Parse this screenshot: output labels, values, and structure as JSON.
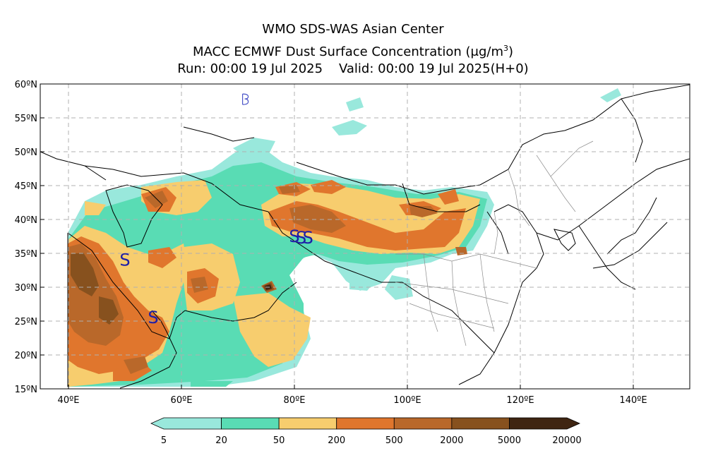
{
  "title": {
    "line1": "WMO SDS-WAS Asian Center",
    "line2_text": "MACC ECMWF Dust Surface Concentration",
    "line2_unit": "(μg/m",
    "line2_unit_sup": "3",
    "line2_unit_close": ")",
    "line3_run": "Run: 00:00 19 Jul 2025",
    "line3_valid": "Valid: 00:00 19 Jul 2025(H+0)"
  },
  "map": {
    "lon_range": [
      35,
      150
    ],
    "lat_range": [
      15,
      60
    ],
    "lon_ticks": [
      {
        "value": 40,
        "label": "40ºE"
      },
      {
        "value": 60,
        "label": "60ºE"
      },
      {
        "value": 80,
        "label": "80ºE"
      },
      {
        "value": 100,
        "label": "100ºE"
      },
      {
        "value": 120,
        "label": "120ºE"
      },
      {
        "value": 140,
        "label": "140ºE"
      }
    ],
    "lat_ticks": [
      {
        "value": 15,
        "label": "15ºN"
      },
      {
        "value": 20,
        "label": "20ºN"
      },
      {
        "value": 25,
        "label": "25ºN"
      },
      {
        "value": 30,
        "label": "30ºN"
      },
      {
        "value": 35,
        "label": "35ºN"
      },
      {
        "value": 40,
        "label": "40ºN"
      },
      {
        "value": 45,
        "label": "45ºN"
      },
      {
        "value": 50,
        "label": "50ºN"
      },
      {
        "value": 55,
        "label": "55ºN"
      },
      {
        "value": 60,
        "label": "60ºN"
      }
    ],
    "grid": true
  },
  "colorbar": {
    "labels": [
      "5",
      "20",
      "50",
      "200",
      "500",
      "2000",
      "5000",
      "20000"
    ],
    "colors": [
      "#99e8dc",
      "#59dcb4",
      "#f7cd6e",
      "#e0762d",
      "#b9682a",
      "#87511e",
      "#3f2512"
    ]
  },
  "weather_symbols": [
    {
      "type": "dust-storm",
      "lon": 50,
      "lat": 34,
      "glyph": "S"
    },
    {
      "type": "dust-storm",
      "lon": 55,
      "lat": 25.5,
      "glyph": "S"
    },
    {
      "type": "dust-storm",
      "lon": 80,
      "lat": 37.5,
      "glyph": "S"
    },
    {
      "type": "dust-storm",
      "lon": 81.2,
      "lat": 37.3,
      "glyph": "S"
    },
    {
      "type": "dust-storm",
      "lon": 82.4,
      "lat": 37.3,
      "glyph": "S"
    },
    {
      "type": "dust-whirl",
      "lon": 71.2,
      "lat": 57.8,
      "glyph": ""
    }
  ]
}
